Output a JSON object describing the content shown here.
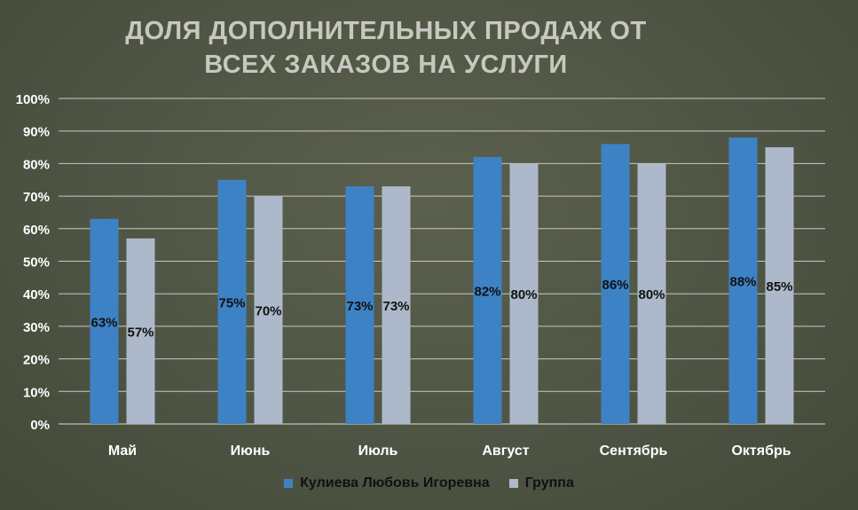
{
  "chart_data": {
    "type": "bar",
    "title_lines": [
      "ДОЛЯ ДОПОЛНИТЕЛЬНЫХ ПРОДАЖ ОТ",
      "ВСЕХ ЗАКАЗОВ НА УСЛУГИ"
    ],
    "categories": [
      "Май",
      "Июнь",
      "Июль",
      "Август",
      "Сентябрь",
      "Октябрь"
    ],
    "series": [
      {
        "name": "Кулиева Любовь Игоревна",
        "values": [
          63,
          75,
          73,
          82,
          86,
          88
        ],
        "color": "#3e82c6",
        "labels": [
          "63%",
          "75%",
          "73%",
          "82%",
          "86%",
          "88%"
        ]
      },
      {
        "name": "Группа",
        "values": [
          57,
          70,
          73,
          80,
          80,
          85
        ],
        "color": "#adb9ca",
        "labels": [
          "57%",
          "70%",
          "73%",
          "80%",
          "80%",
          "85%"
        ]
      }
    ],
    "ylim": [
      0,
      100
    ],
    "yticks": [
      "0%",
      "10%",
      "20%",
      "30%",
      "40%",
      "50%",
      "60%",
      "70%",
      "80%",
      "90%",
      "100%"
    ],
    "grid": true,
    "legend_position": "bottom"
  }
}
